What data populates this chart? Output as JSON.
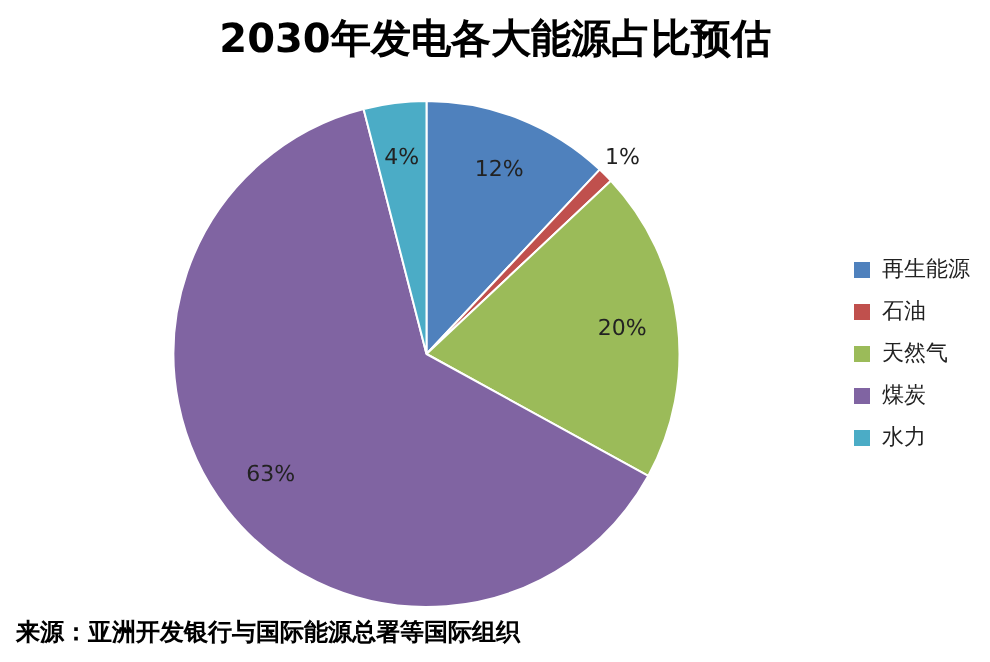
{
  "chart_data": {
    "type": "pie",
    "title": "2030年发电各大能源占比预估",
    "categories": [
      "再生能源",
      "石油",
      "天然气",
      "煤炭",
      "水力"
    ],
    "values": [
      12,
      1,
      20,
      63,
      4
    ],
    "colors": [
      "#4f81bd",
      "#c0504d",
      "#9bbb59",
      "#8064a2",
      "#4bacc6"
    ],
    "value_labels": [
      "12%",
      "1%",
      "20%",
      "63%",
      "4%"
    ],
    "legend": "right",
    "annotations": [
      "来源：亚洲开发银行与国际能源总署等国际组织"
    ]
  }
}
